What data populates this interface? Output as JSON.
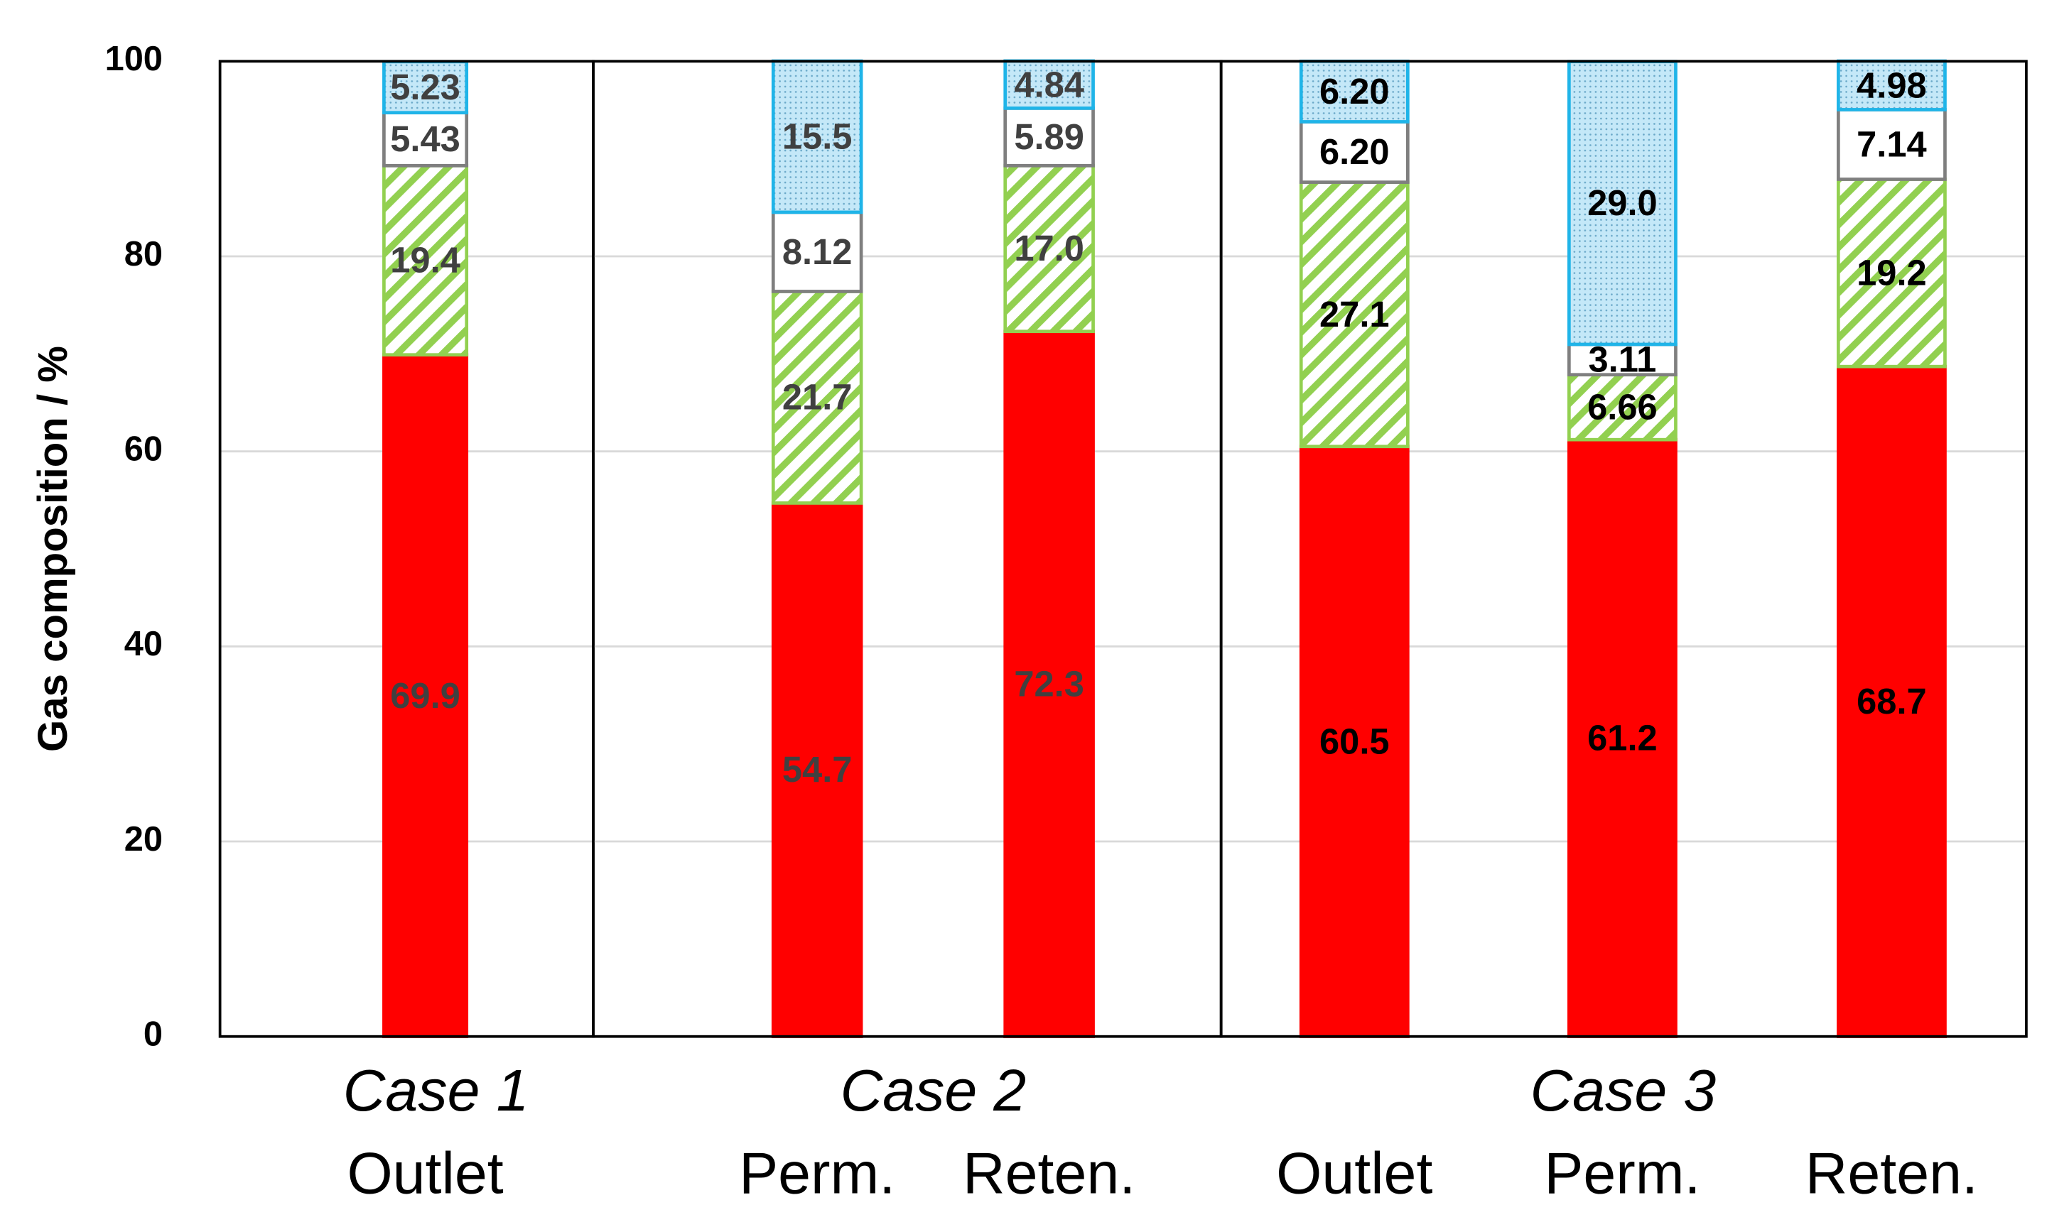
{
  "chart_data": [
    {
      "type": "bar",
      "stacked": true,
      "xlabel": "Case 1",
      "ylabel": "Gas composition / %",
      "categories": [
        "Outlet"
      ],
      "ylim": [
        0,
        100
      ],
      "yticks": [
        0,
        20,
        40,
        60,
        80,
        100
      ],
      "grid": true,
      "series": [
        {
          "color": "#ff0000",
          "edgecolor": "#ff0000",
          "values": [
            69.9
          ],
          "value_labels": [
            "69.9"
          ]
        },
        {
          "color": "#92d050",
          "edgecolor": "#92d050",
          "pattern": "hatch",
          "values": [
            19.4
          ],
          "value_labels": [
            "19.4"
          ]
        },
        {
          "color": "#ffffff",
          "edgecolor": "#7f7f7f",
          "values": [
            5.43
          ],
          "value_labels": [
            "5.43"
          ]
        },
        {
          "color": "#c4e8f8",
          "edgecolor": "#1fb4e8",
          "pattern": "dots",
          "values": [
            5.23
          ],
          "value_labels": [
            "5.23"
          ]
        }
      ]
    },
    {
      "type": "bar",
      "stacked": true,
      "xlabel": "Case 2",
      "categories": [
        "Perm.",
        "Reten."
      ],
      "ylim": [
        0,
        100
      ],
      "grid": true,
      "series": [
        {
          "color": "#ff0000",
          "edgecolor": "#ff0000",
          "values": [
            54.7,
            72.3
          ],
          "value_labels": [
            "54.7",
            "72.3"
          ]
        },
        {
          "color": "#92d050",
          "edgecolor": "#92d050",
          "pattern": "hatch",
          "values": [
            21.7,
            17.0
          ],
          "value_labels": [
            "21.7",
            "17.0"
          ]
        },
        {
          "color": "#ffffff",
          "edgecolor": "#7f7f7f",
          "values": [
            8.12,
            5.89
          ],
          "value_labels": [
            "8.12",
            "5.89"
          ]
        },
        {
          "color": "#c4e8f8",
          "edgecolor": "#1fb4e8",
          "pattern": "dots",
          "values": [
            15.5,
            4.84
          ],
          "value_labels": [
            "15.5",
            "4.84"
          ]
        }
      ]
    },
    {
      "type": "bar",
      "stacked": true,
      "xlabel": "Case 3",
      "categories": [
        "Outlet",
        "Perm.",
        "Reten."
      ],
      "ylim": [
        0,
        100
      ],
      "grid": true,
      "series": [
        {
          "color": "#ff0000",
          "edgecolor": "#ff0000",
          "values": [
            60.5,
            61.2,
            68.7
          ],
          "value_labels": [
            "60.5",
            "61.2",
            "68.7"
          ]
        },
        {
          "color": "#92d050",
          "edgecolor": "#92d050",
          "pattern": "hatch",
          "values": [
            27.1,
            6.66,
            19.2
          ],
          "value_labels": [
            "27.1",
            "6.66",
            "19.2"
          ]
        },
        {
          "color": "#ffffff",
          "edgecolor": "#7f7f7f",
          "values": [
            6.2,
            3.11,
            7.14
          ],
          "value_labels": [
            "6.20",
            "3.11",
            "7.14"
          ]
        },
        {
          "color": "#c4e8f8",
          "edgecolor": "#1fb4e8",
          "pattern": "dots",
          "values": [
            6.2,
            29.0,
            4.98
          ],
          "value_labels": [
            "6.20",
            "29.0",
            "4.98"
          ]
        }
      ]
    }
  ]
}
